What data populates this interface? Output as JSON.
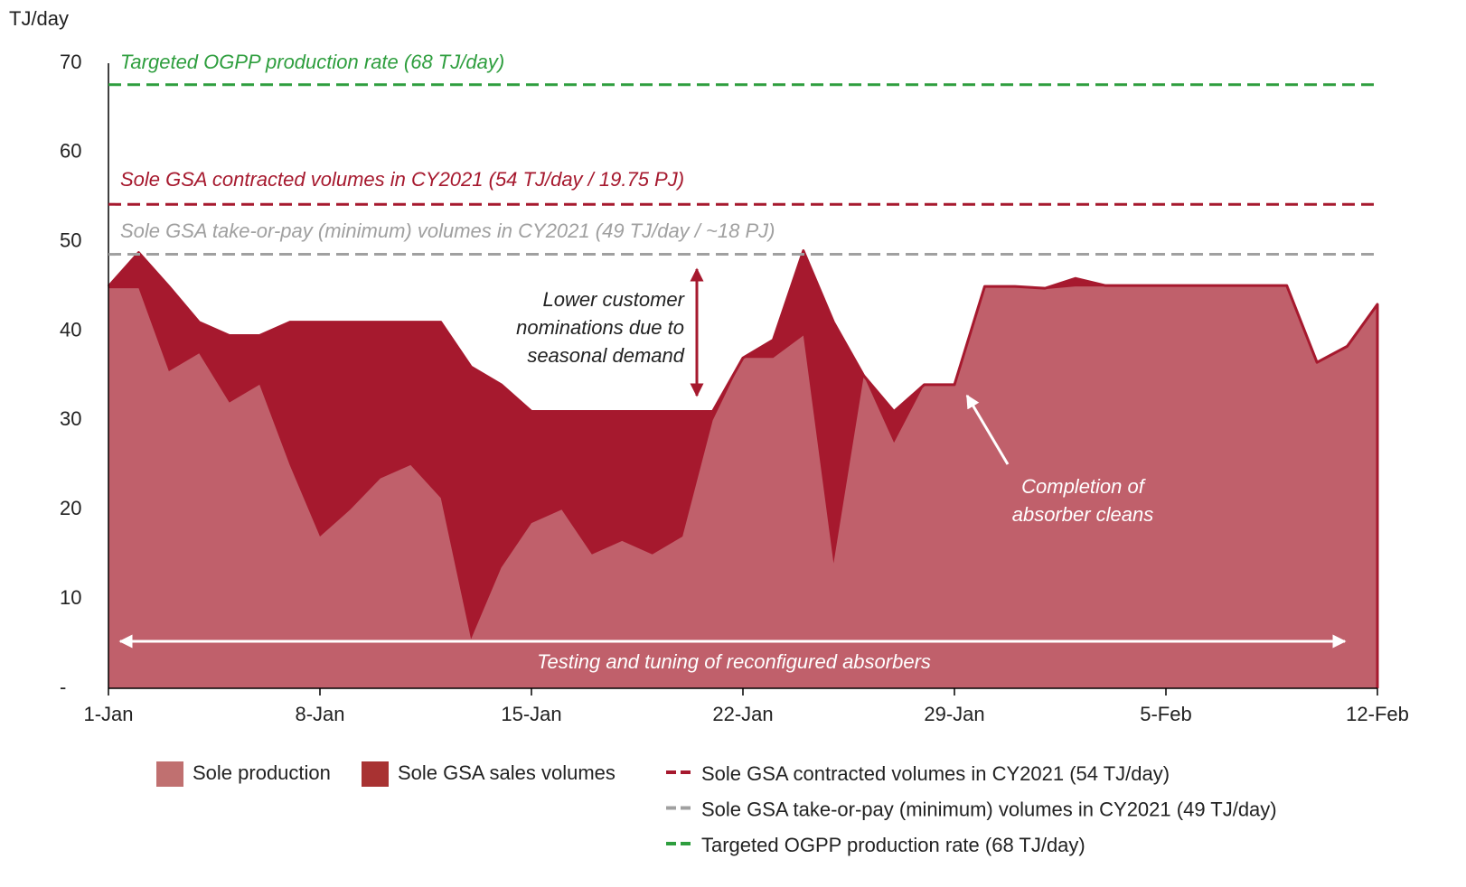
{
  "chart_data": {
    "type": "area",
    "y_label": "TJ/day",
    "categories": [
      "1-Jan",
      null,
      null,
      null,
      null,
      null,
      null,
      "8-Jan",
      null,
      null,
      null,
      null,
      null,
      null,
      "15-Jan",
      null,
      null,
      null,
      null,
      null,
      null,
      "22-Jan",
      null,
      null,
      null,
      null,
      null,
      null,
      "29-Jan",
      null,
      null,
      null,
      null,
      null,
      null,
      "5-Feb",
      null,
      null,
      null,
      null,
      null,
      null,
      "12-Feb"
    ],
    "series": [
      {
        "name": "Sole production",
        "color": "#c0606b",
        "values": [
          44.8,
          44.8,
          35.5,
          37.5,
          32,
          34,
          25,
          17,
          20,
          23.5,
          25,
          21.3,
          5.5,
          13.5,
          18.5,
          20,
          15,
          16.5,
          15,
          17,
          30,
          37,
          37,
          39.5,
          14,
          35,
          27.5,
          34,
          34,
          45,
          45,
          44.7,
          45,
          45,
          45,
          45,
          45,
          45,
          45,
          45,
          36.5,
          38.3,
          43
        ]
      },
      {
        "name": "Sole GSA sales volumes",
        "color": "#a6192e",
        "values": [
          45,
          48.8,
          45,
          41,
          39.5,
          39.5,
          41,
          41,
          41,
          41,
          41,
          41,
          36,
          34,
          31,
          31,
          31,
          31,
          31,
          31,
          31,
          37,
          39,
          49,
          41,
          35,
          31,
          34,
          34,
          45,
          45,
          44.8,
          45.9,
          45.1,
          45.1,
          45.1,
          45.1,
          45.1,
          45.1,
          45.1,
          36.5,
          38.3,
          43
        ]
      }
    ],
    "reference_lines": [
      {
        "name": "Sole GSA contracted volumes in CY2021 (54 TJ/day)",
        "label": "Sole GSA contracted volumes in CY2021 (54 TJ/day / 19.75 PJ)",
        "value": 54.2,
        "color": "#a6192e"
      },
      {
        "name": "Sole GSA take-or-pay (minimum) volumes in CY2021 (49 TJ/day)",
        "label": "Sole GSA take-or-pay (minimum) volumes in CY2021 (49 TJ/day / ~18 PJ)",
        "value": 48.6,
        "color": "#a0a0a0"
      },
      {
        "name": "Targeted OGPP production rate (68 TJ/day)",
        "label": "Targeted OGPP production rate (68 TJ/day)",
        "value": 67.6,
        "color": "#2e9e3e"
      }
    ],
    "annotations": [
      {
        "lines": [
          "Lower customer",
          "nominations due to",
          "seasonal demand"
        ]
      },
      {
        "lines": [
          "Completion of",
          "absorber cleans"
        ]
      },
      {
        "lines": [
          "Testing and tuning of reconfigured absorbers"
        ]
      }
    ],
    "ylim": [
      0,
      70
    ],
    "yticks": [
      {
        "value": 0,
        "label": "-"
      },
      10,
      20,
      30,
      40,
      50,
      60,
      70
    ]
  }
}
